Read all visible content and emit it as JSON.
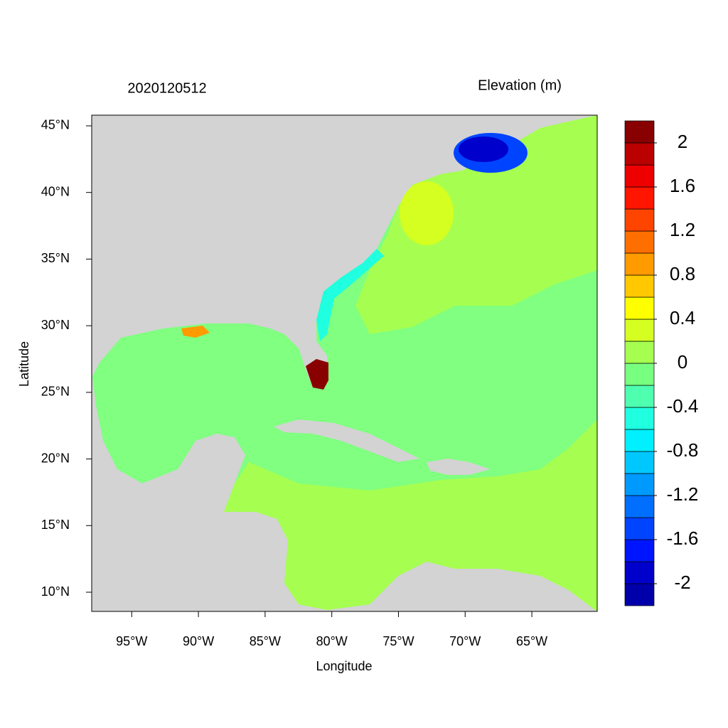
{
  "chart_data": {
    "type": "map",
    "title": "2020120512",
    "colorbar_title": "Elevation (m)",
    "x_label": "Longitude",
    "y_label": "Latitude",
    "xlim": [
      -98,
      -60.1
    ],
    "ylim": [
      8.56,
      45.8
    ],
    "xticks": [
      {
        "value": -95,
        "label": "95°W"
      },
      {
        "value": -90,
        "label": "90°W"
      },
      {
        "value": -85,
        "label": "85°W"
      },
      {
        "value": -80,
        "label": "80°W"
      },
      {
        "value": -75,
        "label": "75°W"
      },
      {
        "value": -70,
        "label": "70°W"
      },
      {
        "value": -65,
        "label": "65°W"
      }
    ],
    "yticks": [
      {
        "value": 10,
        "label": "10°N"
      },
      {
        "value": 15,
        "label": "15°N"
      },
      {
        "value": 20,
        "label": "20°N"
      },
      {
        "value": 25,
        "label": "25°N"
      },
      {
        "value": 30,
        "label": "30°N"
      },
      {
        "value": 35,
        "label": "35°N"
      },
      {
        "value": 40,
        "label": "40°N"
      },
      {
        "value": 45,
        "label": "45°N"
      }
    ],
    "clim": [
      -2.2,
      2.2
    ],
    "cticks": [
      -2,
      -1.6,
      -1.2,
      -0.8,
      -0.4,
      0,
      0.4,
      0.8,
      1.2,
      1.6,
      2
    ],
    "colors": [
      "#0000aa",
      "#0000cc",
      "#0015ff",
      "#0044ff",
      "#006fff",
      "#009aff",
      "#00c8ff",
      "#00f0ff",
      "#20ffdf",
      "#4dffaf",
      "#79ff80",
      "#a6ff50",
      "#d4ff20",
      "#ffff00",
      "#ffc800",
      "#ff9a00",
      "#ff6f00",
      "#ff4400",
      "#ff1500",
      "#ee0000",
      "#bb0000",
      "#880000"
    ]
  }
}
